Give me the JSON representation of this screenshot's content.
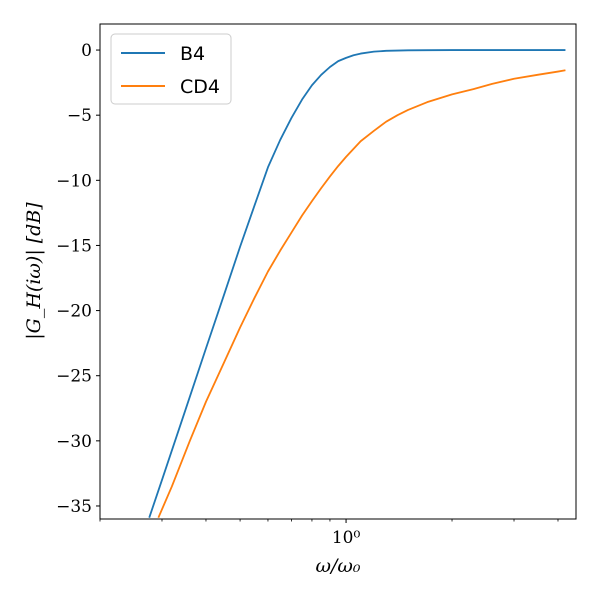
{
  "chart_data": {
    "type": "line",
    "title": "",
    "xlabel": "ω/ω₀",
    "ylabel": "|G_H(iω)| [dB]",
    "x_scale": "log",
    "xlim": [
      0.2,
      4.5
    ],
    "ylim": [
      -36,
      2
    ],
    "x_ticks": [
      {
        "value": 1,
        "label": "10⁰"
      }
    ],
    "y_ticks": [
      {
        "value": 0,
        "label": "0"
      },
      {
        "value": -5,
        "label": "−5"
      },
      {
        "value": -10,
        "label": "−10"
      },
      {
        "value": -15,
        "label": "−15"
      },
      {
        "value": -20,
        "label": "−20"
      },
      {
        "value": -25,
        "label": "−25"
      },
      {
        "value": -30,
        "label": "−30"
      },
      {
        "value": -35,
        "label": "−35"
      }
    ],
    "grid": false,
    "legend": "top-left",
    "series": [
      {
        "name": "B4",
        "color": "#1f77b4",
        "x": [
          0.276,
          0.3,
          0.35,
          0.4,
          0.45,
          0.5,
          0.55,
          0.6,
          0.65,
          0.7,
          0.75,
          0.8,
          0.85,
          0.9,
          0.95,
          1.0,
          1.05,
          1.1,
          1.2,
          1.3,
          1.4,
          1.5,
          1.7,
          2.0,
          2.5,
          3.0,
          3.5,
          4.0,
          4.2
        ],
        "y": [
          -35.9,
          -33.0,
          -27.6,
          -22.9,
          -18.8,
          -15.1,
          -11.9,
          -9.0,
          -6.9,
          -5.2,
          -3.8,
          -2.7,
          -1.9,
          -1.3,
          -0.85,
          -0.6,
          -0.4,
          -0.27,
          -0.12,
          -0.06,
          -0.04,
          -0.02,
          -0.01,
          0.0,
          0.0,
          0.0,
          0.0,
          0.0,
          0.0
        ]
      },
      {
        "name": "CD4",
        "color": "#ff7f0e",
        "x": [
          0.293,
          0.32,
          0.36,
          0.4,
          0.45,
          0.5,
          0.55,
          0.6,
          0.65,
          0.7,
          0.75,
          0.8,
          0.85,
          0.9,
          0.95,
          1.0,
          1.1,
          1.2,
          1.3,
          1.4,
          1.5,
          1.7,
          2.0,
          2.3,
          2.6,
          3.0,
          3.5,
          4.0,
          4.2
        ],
        "y": [
          -35.9,
          -33.5,
          -30.0,
          -27.0,
          -24.0,
          -21.3,
          -19.0,
          -17.0,
          -15.4,
          -14.0,
          -12.7,
          -11.6,
          -10.6,
          -9.7,
          -8.9,
          -8.2,
          -7.0,
          -6.2,
          -5.5,
          -5.0,
          -4.6,
          -4.0,
          -3.4,
          -3.0,
          -2.6,
          -2.2,
          -1.9,
          -1.65,
          -1.55
        ]
      }
    ]
  }
}
